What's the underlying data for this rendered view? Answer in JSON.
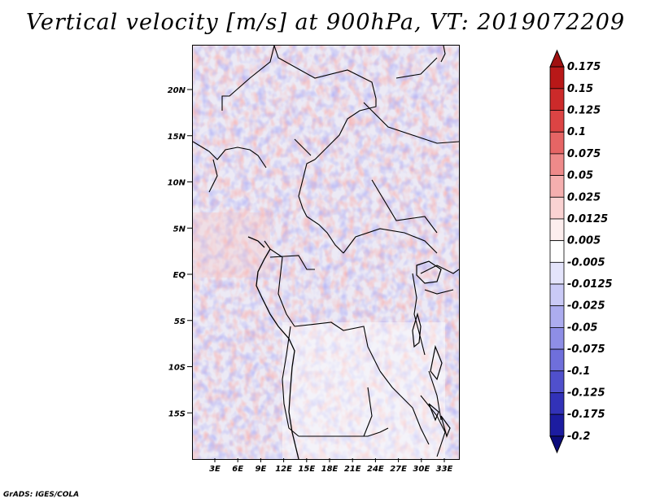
{
  "title": "Vertical velocity [m/s] at 900hPa, VT: 2019072209",
  "footer": "GrADS: IGES/COLA",
  "map": {
    "lat_ticks": [
      {
        "label": "20N",
        "lat": 20
      },
      {
        "label": "15N",
        "lat": 15
      },
      {
        "label": "10N",
        "lat": 10
      },
      {
        "label": "5N",
        "lat": 5
      },
      {
        "label": "EQ",
        "lat": 0
      },
      {
        "label": "5S",
        "lat": -5
      },
      {
        "label": "10S",
        "lat": -10
      },
      {
        "label": "15S",
        "lat": -15
      }
    ],
    "lon_ticks": [
      {
        "label": "3E",
        "lon": 3
      },
      {
        "label": "6E",
        "lon": 6
      },
      {
        "label": "9E",
        "lon": 9
      },
      {
        "label": "12E",
        "lon": 12
      },
      {
        "label": "15E",
        "lon": 15
      },
      {
        "label": "18E",
        "lon": 18
      },
      {
        "label": "21E",
        "lon": 21
      },
      {
        "label": "24E",
        "lon": 24
      },
      {
        "label": "27E",
        "lon": 27
      },
      {
        "label": "30E",
        "lon": 30
      },
      {
        "label": "33E",
        "lon": 33
      }
    ]
  },
  "colorbar": {
    "levels": [
      "0.175",
      "0.15",
      "0.125",
      "0.1",
      "0.075",
      "0.05",
      "0.025",
      "0.0125",
      "0.005",
      "-0.005",
      "-0.0125",
      "-0.025",
      "-0.05",
      "-0.075",
      "-0.1",
      "-0.125",
      "-0.175",
      "-0.2"
    ],
    "colors": [
      "#a01010",
      "#b81818",
      "#cc2a2a",
      "#dc4444",
      "#e66565",
      "#ee8a8a",
      "#f5afaf",
      "#fad2d2",
      "#fdeeee",
      "#ffffff",
      "#e4e4fb",
      "#cacaf6",
      "#acacef",
      "#8e8ee6",
      "#6f6fdb",
      "#5050cc",
      "#3232b8",
      "#1c1ca0",
      "#0c0c7c"
    ]
  }
}
